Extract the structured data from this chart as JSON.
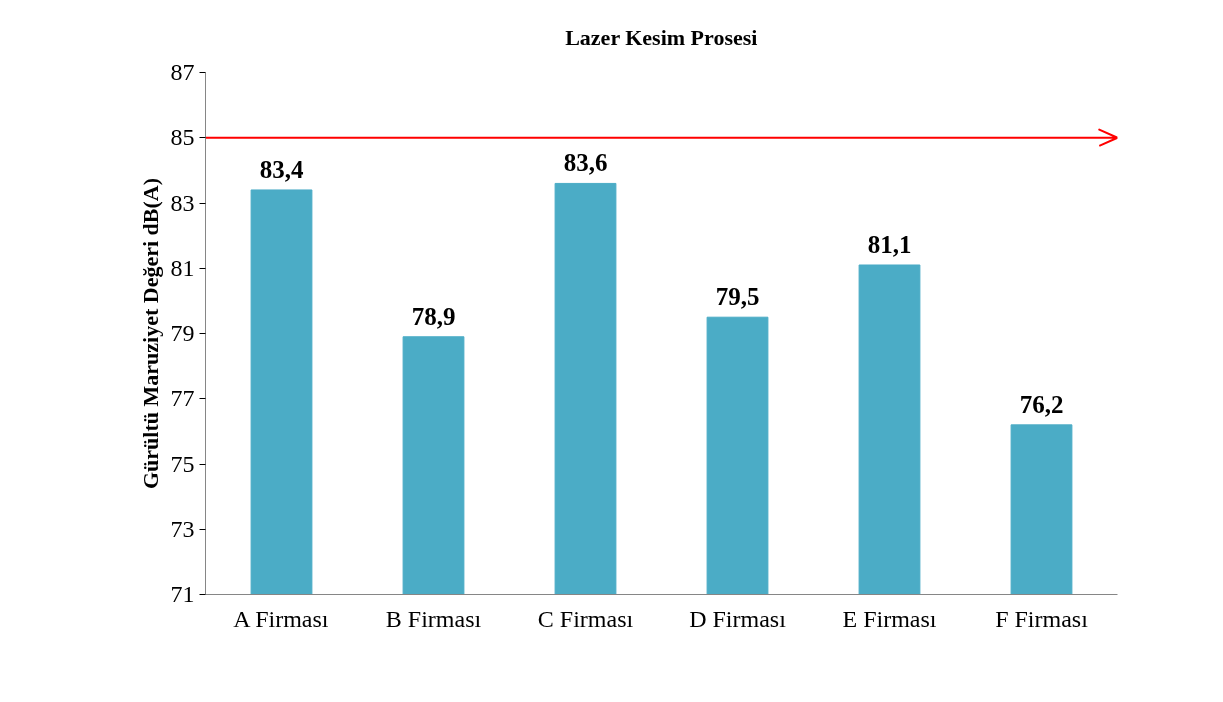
{
  "chart_data": {
    "type": "bar",
    "title": "Lazer Kesim Prosesi",
    "ylabel": "Gürültü Maruziyet Değeri dB(A)",
    "categories": [
      "A Firması",
      "B Firması",
      "C Firması",
      "D Firması",
      "E Firması",
      "F Firması"
    ],
    "values": [
      83.4,
      78.9,
      83.6,
      79.5,
      81.1,
      76.2
    ],
    "value_labels": [
      "83,4",
      "78,9",
      "83,6",
      "79,5",
      "81,1",
      "76,2"
    ],
    "color": "#4bacc6",
    "ylim": [
      71,
      87
    ],
    "yticks": [
      71,
      73,
      75,
      77,
      79,
      81,
      83,
      85,
      87
    ],
    "ref_lines": [
      {
        "axis": "y",
        "value": 85,
        "color": "#ff0000"
      }
    ],
    "grid": false
  }
}
